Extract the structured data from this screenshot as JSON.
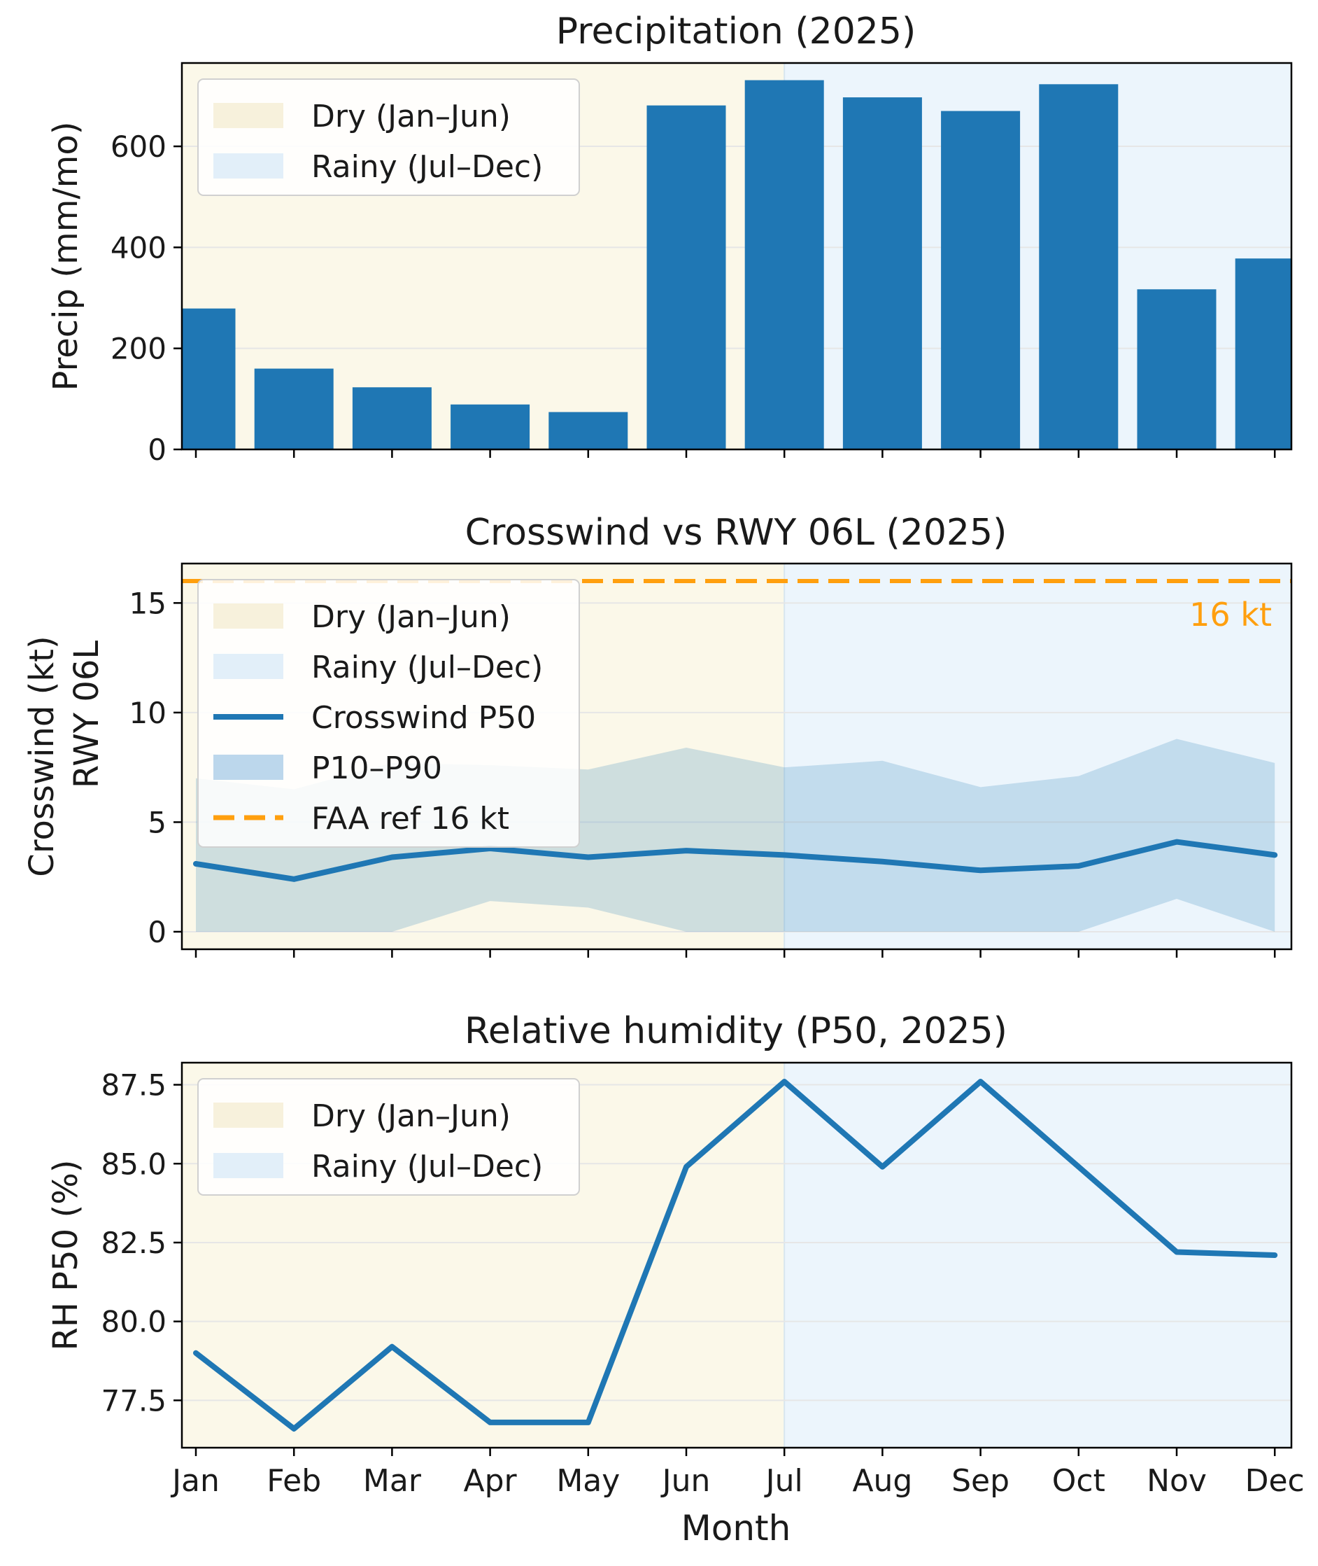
{
  "colors": {
    "dry": "#fbf8e9",
    "rainy": "#ecf5fc",
    "bar": "#1f77b4",
    "band": "#1f77b4",
    "threshold": "#ff9f0e",
    "grid": "#e6e6e6",
    "legend_dry": "#f7f1dc",
    "legend_rainy": "#e2eff9",
    "legend_band": "#bcd7ec"
  },
  "months": [
    "Jan",
    "Feb",
    "Mar",
    "Apr",
    "May",
    "Jun",
    "Jul",
    "Aug",
    "Sep",
    "Oct",
    "Nov",
    "Dec"
  ],
  "xlabel": "Month",
  "chart_data": [
    {
      "id": "precip",
      "type": "bar",
      "title": "Precipitation (2025)",
      "ylabel": "Precip (mm/mo)",
      "ylim": [
        0,
        765
      ],
      "yticks": [
        0,
        200,
        400,
        600
      ],
      "ytick_labels": [
        "0",
        "200",
        "400",
        "600"
      ],
      "categories": [
        "Jan",
        "Feb",
        "Mar",
        "Apr",
        "May",
        "Jun",
        "Jul",
        "Aug",
        "Sep",
        "Oct",
        "Nov",
        "Dec"
      ],
      "values": [
        279,
        160,
        123,
        89,
        74,
        681,
        731,
        697,
        670,
        723,
        317,
        378
      ],
      "legend": [
        {
          "kind": "dry",
          "label": "Dry (Jan–Jun)"
        },
        {
          "kind": "rainy",
          "label": "Rainy (Jul–Dec)"
        }
      ]
    },
    {
      "id": "crosswind",
      "type": "line",
      "title": "Crosswind vs RWY 06L (2025)",
      "ylabel": [
        "Crosswind (kt)",
        "RWY 06L"
      ],
      "ylim": [
        -0.8,
        16.8
      ],
      "yticks": [
        0,
        5,
        10,
        15
      ],
      "ytick_labels": [
        "0",
        "5",
        "10",
        "15"
      ],
      "series": [
        {
          "name": "Crosswind P50",
          "values": [
            3.1,
            2.4,
            3.4,
            3.8,
            3.4,
            3.7,
            3.5,
            3.2,
            2.8,
            3.0,
            4.1,
            3.5
          ]
        },
        {
          "name": "P10–P90",
          "lower": [
            0.0,
            0.0,
            0.0,
            1.4,
            1.1,
            0.0,
            0.0,
            0.0,
            0.0,
            0.0,
            1.5,
            0.0
          ],
          "upper": [
            7.0,
            6.5,
            7.7,
            7.6,
            7.4,
            8.4,
            7.5,
            7.8,
            6.6,
            7.1,
            8.8,
            7.7
          ]
        }
      ],
      "threshold": {
        "value": 16,
        "label": "16 kt"
      },
      "legend": [
        {
          "kind": "dry",
          "label": "Dry (Jan–Jun)"
        },
        {
          "kind": "rainy",
          "label": "Rainy (Jul–Dec)"
        },
        {
          "kind": "line",
          "label": "Crosswind P50"
        },
        {
          "kind": "band",
          "label": "P10–P90"
        },
        {
          "kind": "dash",
          "label": "FAA ref 16 kt"
        }
      ]
    },
    {
      "id": "humidity",
      "type": "line",
      "title": "Relative humidity (P50, 2025)",
      "ylabel": "RH P50 (%)",
      "ylim": [
        76.0,
        88.2
      ],
      "yticks": [
        77.5,
        80.0,
        82.5,
        85.0,
        87.5
      ],
      "ytick_labels": [
        "77.5",
        "80.0",
        "82.5",
        "85.0",
        "87.5"
      ],
      "series": [
        {
          "name": "RH P50",
          "values": [
            79.0,
            76.6,
            79.2,
            76.8,
            76.8,
            84.9,
            87.6,
            84.9,
            87.6,
            84.9,
            82.2,
            82.1
          ]
        }
      ],
      "legend": [
        {
          "kind": "dry",
          "label": "Dry (Jan–Jun)"
        },
        {
          "kind": "rainy",
          "label": "Rainy (Jul–Dec)"
        }
      ]
    }
  ]
}
